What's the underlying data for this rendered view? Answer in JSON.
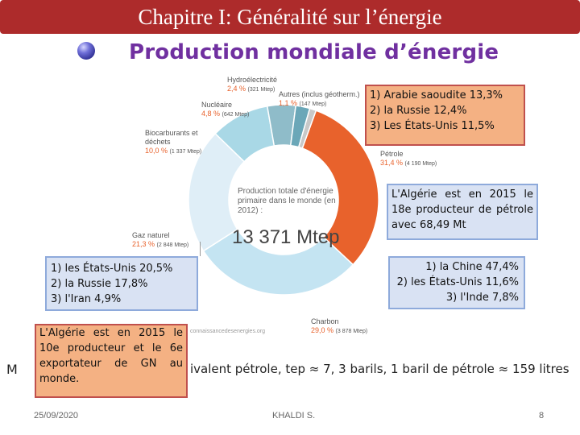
{
  "header": {
    "title": "Chapitre I: Généralité sur l’énergie"
  },
  "subtitle": "Production mondiale d’énergie",
  "chart_data": {
    "type": "pie",
    "title": "Production totale d'énergie primaire dans le monde (en 2012) :",
    "total": "13 371 Mtep",
    "categories": [
      "Pétrole",
      "Charbon",
      "Gaz naturel",
      "Biocarburants et déchets",
      "Nucléaire",
      "Hydroélectricité",
      "Autres (inclus géotherm.)"
    ],
    "values": [
      31.4,
      29.0,
      21.3,
      10.0,
      4.8,
      2.4,
      1.1
    ],
    "colors": [
      "#e8622c",
      "#c4e4f2",
      "#dfeef7",
      "#a9d8e6",
      "#8fbcc9",
      "#6ba7b8",
      "#c8c8c8"
    ],
    "labels": [
      {
        "name": "Pétrole",
        "pct": "31,4 %",
        "mtep": "(4 190 Mtep)"
      },
      {
        "name": "Charbon",
        "pct": "29,0 %",
        "mtep": "(3 878 Mtep)"
      },
      {
        "name": "Gaz naturel",
        "pct": "21,3 %",
        "mtep": "(2 848 Mtep)"
      },
      {
        "name": "Biocarburants et déchets",
        "pct": "10,0 %",
        "mtep": "(1 337 Mtep)"
      },
      {
        "name": "Nucléaire",
        "pct": "4,8 %",
        "mtep": "(642 Mtep)"
      },
      {
        "name": "Hydroélectricité",
        "pct": "2,4 %",
        "mtep": "(321 Mtep)"
      },
      {
        "name": "Autres (inclus géotherm.)",
        "pct": "1,1 %",
        "mtep": "(147 Mtep)"
      }
    ],
    "source": "connaissancedesenergies.org"
  },
  "boxes": {
    "oil_producers": [
      "1) Arabie saoudite 13,3%",
      "2) la Russie 12,4%",
      "3) Les États-Unis 11,5%"
    ],
    "algeria_oil": "L'Algérie est en 2015 le 18e producteur de pétrole avec 68,49 Mt",
    "coal_producers": [
      "1) la Chine 47,4%",
      "2) les États-Unis 11,6%",
      "3) l'Inde 7,8%"
    ],
    "gas_producers": [
      "1) les États-Unis 20,5%",
      "2) la Russie 17,8%",
      "3) l'Iran 4,9%"
    ],
    "algeria_gas": "L'Algérie est en 2015 le 10e producteur et le 6e exportateur de GN au monde."
  },
  "note": {
    "prefix": "M",
    "text": "ivalent pétrole, tep ≈ 7, 3 barils, 1 baril de pétrole ≈ 159 litres"
  },
  "footer": {
    "date": "25/09/2020",
    "author": "KHALDI S.",
    "page": "8"
  }
}
